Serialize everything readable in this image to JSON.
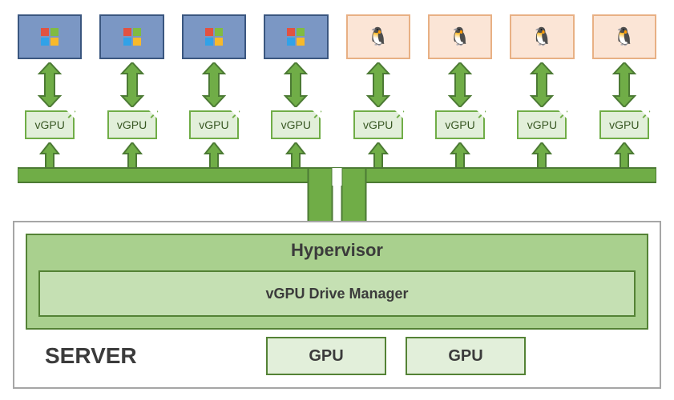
{
  "colors": {
    "green_dark": "#4c7a34",
    "green_mid": "#70ad47",
    "green_light": "#c5e0b3",
    "green_vlight": "#e2efda",
    "win_bg": "#7b97c4",
    "win_border": "#3a567f",
    "linux_bg": "#fbe5d6",
    "linux_border": "#e8b084",
    "server_border": "#548235",
    "server_bg": "#e2efda",
    "hyper_bg": "#a9d08e",
    "drive_bg": "#c5e0b3",
    "gpu_bg": "#e2efda",
    "gray_border": "#a6a6a6",
    "text_dark": "#3b3b3b",
    "text_green": "#385723",
    "win_q1": "#e15241",
    "win_q2": "#80bb42",
    "win_q3": "#31a2e8",
    "win_q4": "#f7b92b",
    "white": "#ffffff"
  },
  "fonts": {
    "family": "Segoe UI",
    "hypervisor_size": 22,
    "label_size": 18,
    "server_size": 28,
    "gpu_size": 20,
    "vgpu_size": 14
  },
  "vms": [
    {
      "type": "windows"
    },
    {
      "type": "windows"
    },
    {
      "type": "windows"
    },
    {
      "type": "windows"
    },
    {
      "type": "linux"
    },
    {
      "type": "linux"
    },
    {
      "type": "linux"
    },
    {
      "type": "linux"
    }
  ],
  "vgpu_label": "vGPU",
  "hypervisor_label": "Hypervisor",
  "drive_manager_label": "vGPU Drive Manager",
  "server_label": "SERVER",
  "gpu_label": "GPU",
  "gpu_count": 2,
  "tux_glyph": "🐧"
}
